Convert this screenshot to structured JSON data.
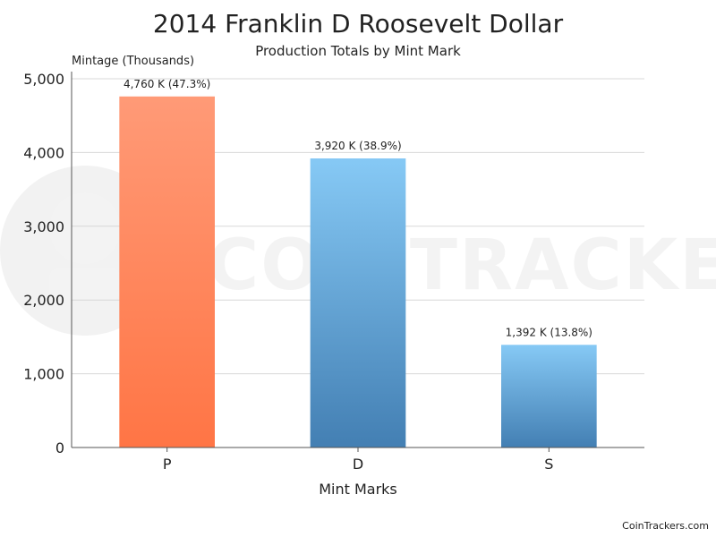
{
  "chart_data": {
    "type": "bar",
    "title": "2014 Franklin D Roosevelt Dollar",
    "subtitle": "Production Totals by Mint Mark",
    "xlabel": "Mint Marks",
    "ylabel": "Mintage (Thousands)",
    "categories": [
      "P",
      "D",
      "S"
    ],
    "values": [
      4760,
      3920,
      1392
    ],
    "data_labels": [
      "4,760 K (47.3%)",
      "3,920 K (38.9%)",
      "1,392 K (13.8%)"
    ],
    "ylim": [
      0,
      5000
    ],
    "yticks": [
      0,
      1000,
      2000,
      3000,
      4000,
      5000
    ],
    "ytick_labels": [
      "0",
      "1,000",
      "2,000",
      "3,000",
      "4,000",
      "5,000"
    ],
    "grid": true,
    "legend": "none",
    "colors": {
      "P": [
        "#ff9a77",
        "#ff7545"
      ],
      "D": [
        "#86c9f5",
        "#437fb3"
      ],
      "S": [
        "#86c9f5",
        "#437fb3"
      ]
    }
  },
  "watermark": "COINTRACKERS",
  "credit": "CoinTrackers.com"
}
